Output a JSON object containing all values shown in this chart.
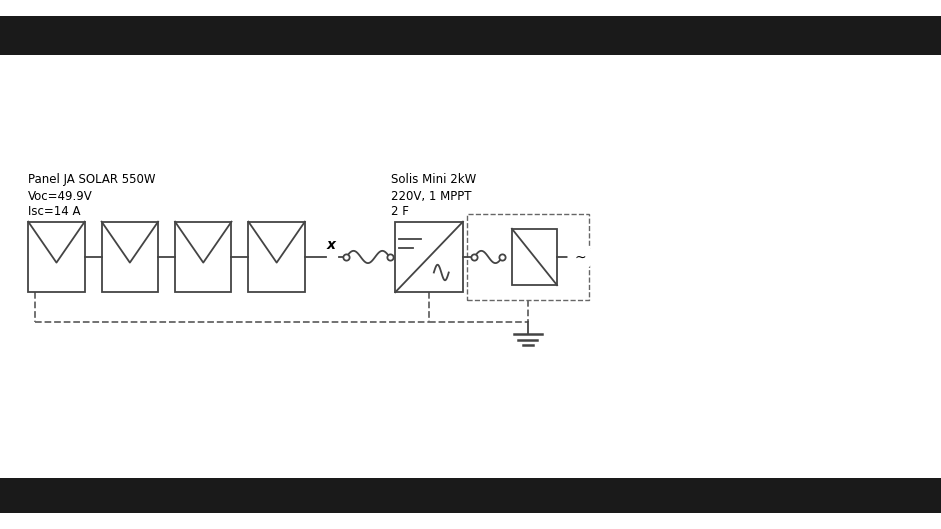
{
  "bg_color": "#ffffff",
  "border_color": "#1a1a1a",
  "line_color": "#444444",
  "dashed_color": "#666666",
  "text_color": "#000000",
  "panel_label1": "Panel JA SOLAR 550W",
  "panel_label2": "Voc=49.9V",
  "panel_label3": "Isc=14 A",
  "inverter_label1": "Solis Mini 2kW",
  "inverter_label2": "220V, 1 MPPT",
  "inverter_label3": "2 F",
  "fig_width": 9.41,
  "fig_height": 5.29,
  "dpi": 100,
  "xlim": [
    0,
    10
  ],
  "ylim": [
    0,
    5.29
  ]
}
